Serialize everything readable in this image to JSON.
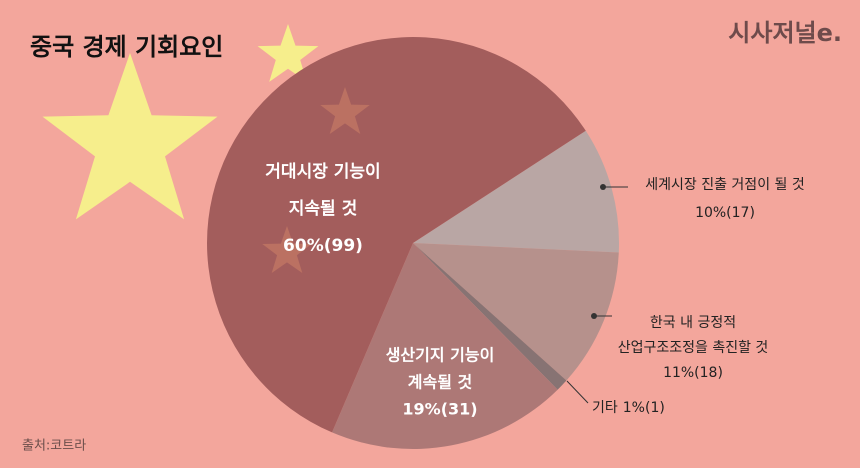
{
  "chart_data": {
    "type": "pie",
    "title": "중국 경제 기회요인",
    "source": "출처:코트라",
    "categories": [
      [
        "세계시장 진출 거점이 될 것"
      ],
      [
        "한국 내 긍정적",
        "산업구조조정을 촉진할 것"
      ],
      [
        "기타"
      ],
      [
        "생산기지 기능이",
        "계속될 것"
      ],
      [
        "거대시장 기능이",
        "지속될 것"
      ]
    ],
    "values": [
      10,
      11,
      1,
      19,
      60
    ],
    "value_labels": [
      "10%(17)",
      "11%(18)",
      "1%(1)",
      "19%(31)",
      "60%(99)"
    ],
    "colors": [
      "#b9a6a4",
      "#b6918c",
      "#877373",
      "#ad7876",
      "#a35d5c"
    ]
  },
  "logo": "시사저널e."
}
